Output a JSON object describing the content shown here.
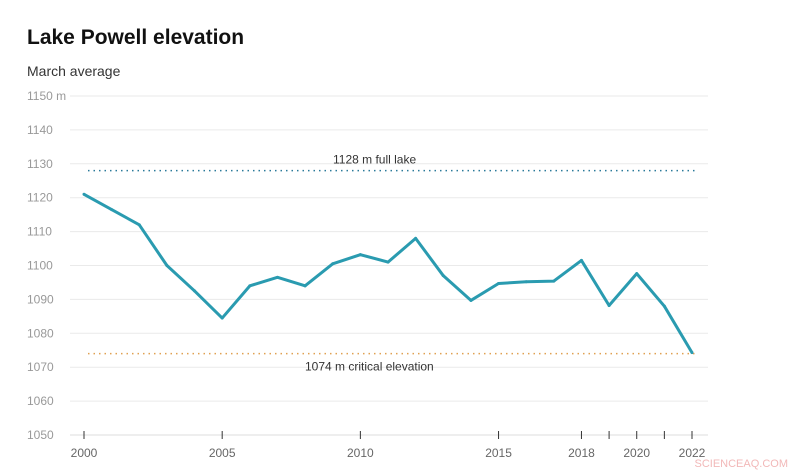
{
  "chart_data": {
    "type": "line",
    "title": "Lake Powell elevation",
    "subtitle": "March average",
    "ylim": [
      1050,
      1150
    ],
    "yticks": [
      1050,
      1060,
      1070,
      1080,
      1090,
      1100,
      1110,
      1120,
      1130,
      1140,
      1150
    ],
    "ytick_labels": [
      "1050",
      "1060",
      "1070",
      "1080",
      "1090",
      "1100",
      "1110",
      "1120",
      "1130",
      "1140",
      "1150 m"
    ],
    "xticks": [
      2000,
      2005,
      2010,
      2015,
      2018,
      2019,
      2020,
      2021,
      2022
    ],
    "xtick_labels": [
      "2000",
      "2005",
      "2010",
      "2015",
      "2018",
      "",
      "2020",
      "",
      "2022"
    ],
    "grid": true,
    "x": [
      2000,
      2001,
      2002,
      2003,
      2004,
      2005,
      2006,
      2007,
      2008,
      2009,
      2010,
      2011,
      2012,
      2013,
      2014,
      2015,
      2016,
      2017,
      2018,
      2019,
      2020,
      2021,
      2022
    ],
    "values": [
      1121,
      1116.5,
      1112,
      1100,
      1092.5,
      1084.5,
      1094,
      1096.5,
      1094,
      1100.5,
      1103.2,
      1101,
      1108,
      1097,
      1089.7,
      1094.7,
      1095.2,
      1095.4,
      1101.5,
      1088.2,
      1097.6,
      1088,
      1074.3
    ],
    "line_color": "#2a9bb0",
    "annotations": [
      {
        "value": 1128,
        "label": "1128 m full lake",
        "color": "#2a7a9a"
      },
      {
        "value": 1074,
        "label": "1074 m critical elevation",
        "color": "#e0a050"
      }
    ]
  },
  "watermark": "SCIENCEAQ.COM"
}
